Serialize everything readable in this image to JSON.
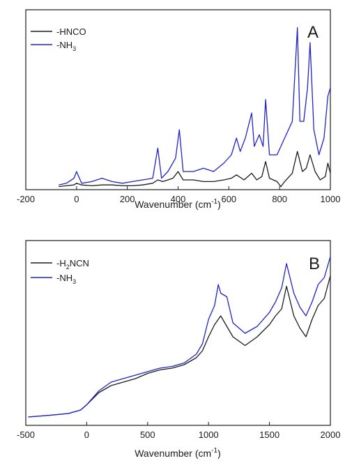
{
  "chart_data": [
    {
      "type": "line",
      "panel_label": "A",
      "xlabel": "Wavenumber (cm",
      "xlabel_sup": "-1",
      "xlabel_end": ")",
      "ylabel": "",
      "xlim": [
        -200,
        1000
      ],
      "ylim": [
        0,
        1
      ],
      "xticks": [
        -200,
        0,
        200,
        400,
        600,
        800,
        1000
      ],
      "xtick_labels": [
        "-200",
        "0",
        "200",
        "400",
        "600",
        "800",
        "1000"
      ],
      "y_tick_labels_shown": false,
      "legend_position": "top-left",
      "series": [
        {
          "name": "-HNCO",
          "color": "#1a1a1a",
          "x": [
            -70,
            -40,
            -10,
            0,
            20,
            60,
            100,
            140,
            180,
            220,
            260,
            300,
            320,
            340,
            380,
            400,
            420,
            460,
            500,
            540,
            580,
            610,
            630,
            660,
            690,
            710,
            730,
            745,
            760,
            790,
            805,
            820,
            850,
            870,
            890,
            905,
            920,
            940,
            960,
            980,
            990,
            1000
          ],
          "y": [
            0.01,
            0.015,
            0.02,
            0.03,
            0.02,
            0.015,
            0.02,
            0.02,
            0.015,
            0.015,
            0.02,
            0.03,
            0.05,
            0.04,
            0.06,
            0.1,
            0.05,
            0.05,
            0.04,
            0.04,
            0.05,
            0.06,
            0.08,
            0.05,
            0.09,
            0.05,
            0.07,
            0.16,
            0.06,
            0.04,
            0.01,
            0.04,
            0.09,
            0.22,
            0.1,
            0.12,
            0.2,
            0.1,
            0.05,
            0.07,
            0.15,
            0.09
          ]
        },
        {
          "name": "-NH3",
          "name_display": "-NH",
          "name_sub": "3",
          "color": "#1f22c8",
          "x": [
            -70,
            -40,
            -10,
            0,
            20,
            60,
            100,
            140,
            180,
            220,
            260,
            300,
            320,
            335,
            360,
            390,
            405,
            420,
            460,
            500,
            540,
            580,
            610,
            630,
            645,
            665,
            690,
            700,
            720,
            735,
            745,
            760,
            790,
            820,
            850,
            870,
            880,
            895,
            910,
            920,
            935,
            955,
            975,
            990,
            1000
          ],
          "y": [
            0.02,
            0.03,
            0.06,
            0.1,
            0.03,
            0.04,
            0.06,
            0.04,
            0.03,
            0.04,
            0.05,
            0.06,
            0.24,
            0.06,
            0.1,
            0.18,
            0.35,
            0.1,
            0.1,
            0.12,
            0.1,
            0.15,
            0.2,
            0.3,
            0.22,
            0.3,
            0.45,
            0.25,
            0.32,
            0.25,
            0.53,
            0.2,
            0.2,
            0.3,
            0.4,
            0.96,
            0.4,
            0.4,
            0.6,
            0.87,
            0.35,
            0.2,
            0.3,
            0.55,
            0.6
          ]
        }
      ]
    },
    {
      "type": "line",
      "panel_label": "B",
      "xlabel": "Wavenumber (cm",
      "xlabel_sup": "-1",
      "xlabel_end": ")",
      "ylabel": "",
      "xlim": [
        -500,
        2000
      ],
      "ylim": [
        0,
        1
      ],
      "xticks": [
        -500,
        0,
        500,
        1000,
        1500,
        2000
      ],
      "xtick_labels": [
        "-500",
        "0",
        "500",
        "1000",
        "1500",
        "2000"
      ],
      "y_tick_labels_shown": false,
      "legend_position": "top-left",
      "series": [
        {
          "name": "-H2NCN",
          "name_prefix": "-H",
          "name_sub": "2",
          "name_suffix": "NCN",
          "color": "#1a1a1a",
          "x": [
            -480,
            -300,
            -150,
            -50,
            0,
            100,
            200,
            300,
            400,
            500,
            600,
            700,
            800,
            900,
            950,
            1000,
            1050,
            1100,
            1150,
            1200,
            1300,
            1400,
            1500,
            1550,
            1600,
            1640,
            1700,
            1750,
            1800,
            1850,
            1900,
            1950,
            2000
          ],
          "y": [
            0.04,
            0.05,
            0.06,
            0.08,
            0.11,
            0.18,
            0.22,
            0.24,
            0.26,
            0.29,
            0.31,
            0.32,
            0.34,
            0.38,
            0.42,
            0.5,
            0.57,
            0.62,
            0.56,
            0.5,
            0.45,
            0.5,
            0.57,
            0.62,
            0.66,
            0.79,
            0.62,
            0.55,
            0.5,
            0.6,
            0.68,
            0.72,
            0.85
          ]
        },
        {
          "name": "-NH3",
          "name_display": "-NH",
          "name_sub": "3",
          "color": "#1f22c8",
          "x": [
            -480,
            -300,
            -150,
            -50,
            0,
            100,
            200,
            300,
            400,
            500,
            600,
            700,
            800,
            900,
            950,
            1000,
            1050,
            1080,
            1100,
            1150,
            1200,
            1300,
            1400,
            1500,
            1550,
            1600,
            1640,
            1700,
            1750,
            1800,
            1850,
            1900,
            1950,
            2000
          ],
          "y": [
            0.04,
            0.05,
            0.06,
            0.08,
            0.11,
            0.19,
            0.24,
            0.26,
            0.28,
            0.3,
            0.32,
            0.33,
            0.35,
            0.4,
            0.46,
            0.6,
            0.68,
            0.8,
            0.75,
            0.73,
            0.58,
            0.52,
            0.56,
            0.64,
            0.7,
            0.78,
            0.92,
            0.75,
            0.67,
            0.62,
            0.7,
            0.8,
            0.84,
            0.96
          ]
        }
      ]
    }
  ]
}
